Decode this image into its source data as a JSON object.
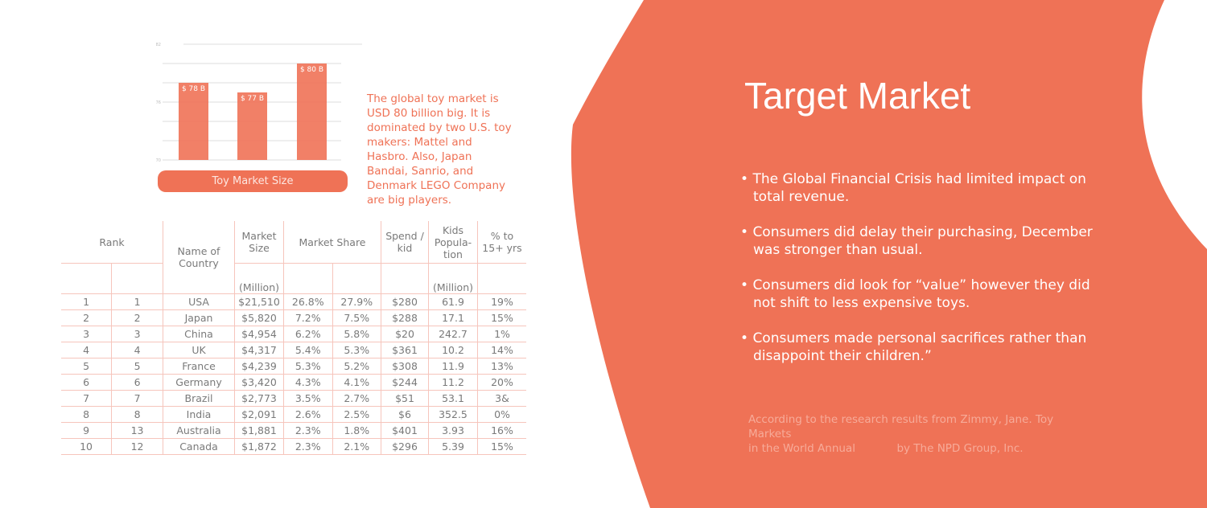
{
  "colors": {
    "accent": "#EF7256",
    "table_line": "#f6c5bc",
    "text": "#7a7a7a"
  },
  "chart_data": {
    "type": "bar",
    "title": "Toy Market Size",
    "categories": [
      "",
      "",
      ""
    ],
    "values": [
      78,
      77,
      80
    ],
    "data_labels": [
      "$ 78 B",
      "$ 77 B",
      "$ 80 B"
    ],
    "yticks": [
      "70",
      "76",
      "82"
    ],
    "ylim": [
      70,
      82
    ],
    "grid": true
  },
  "blurb": "The global toy market is USD 80 billion big. It is dominated by two U.S. toy makers: Mattel and Hasbro. Also, Japan Bandai, Sanrio, and Denmark LEGO Company are big players.",
  "table": {
    "headers": {
      "rank": "Rank",
      "country": "Name of Country",
      "size": "Market Size",
      "share": "Market Share",
      "spend": "Spend / kid",
      "kids": "Kids Popula- tion",
      "pct": "% to 15+ yrs",
      "size_unit": "(Million)",
      "kids_unit": "(Million)"
    },
    "rows": [
      [
        "1",
        "1",
        "USA",
        "$21,510",
        "26.8%",
        "27.9%",
        "$280",
        "61.9",
        "19%"
      ],
      [
        "2",
        "2",
        "Japan",
        "$5,820",
        "7.2%",
        "7.5%",
        "$288",
        "17.1",
        "15%"
      ],
      [
        "3",
        "3",
        "China",
        "$4,954",
        "6.2%",
        "5.8%",
        "$20",
        "242.7",
        "1%"
      ],
      [
        "4",
        "4",
        "UK",
        "$4,317",
        "5.4%",
        "5.3%",
        "$361",
        "10.2",
        "14%"
      ],
      [
        "5",
        "5",
        "France",
        "$4,239",
        "5.3%",
        "5.2%",
        "$308",
        "11.9",
        "13%"
      ],
      [
        "6",
        "6",
        "Germany",
        "$3,420",
        "4.3%",
        "4.1%",
        "$244",
        "11.2",
        "20%"
      ],
      [
        "7",
        "7",
        "Brazil",
        "$2,773",
        "3.5%",
        "2.7%",
        "$51",
        "53.1",
        "3&"
      ],
      [
        "8",
        "8",
        "India",
        "$2,091",
        "2.6%",
        "2.5%",
        "$6",
        "352.5",
        "0%"
      ],
      [
        "9",
        "13",
        "Australia",
        "$1,881",
        "2.3%",
        "1.8%",
        "$401",
        "3.93",
        "16%"
      ],
      [
        "10",
        "12",
        "Canada",
        "$1,872",
        "2.3%",
        "2.1%",
        "$296",
        "5.39",
        "15%"
      ]
    ]
  },
  "title": "Target Market",
  "bullets": [
    "The Global Financial Crisis had limited impact on total revenue.",
    "Consumers did delay their purchasing, December was stronger than usual.",
    "Consumers did look for “value” however they did not shift to less expensive toys.",
    "Consumers made personal sacrifices rather than disappoint their children.”"
  ],
  "source": {
    "line1": "According to the research results from Zimmy, Jane. Toy Markets",
    "line2": "in the World Annual            by The NPD Group, Inc."
  }
}
